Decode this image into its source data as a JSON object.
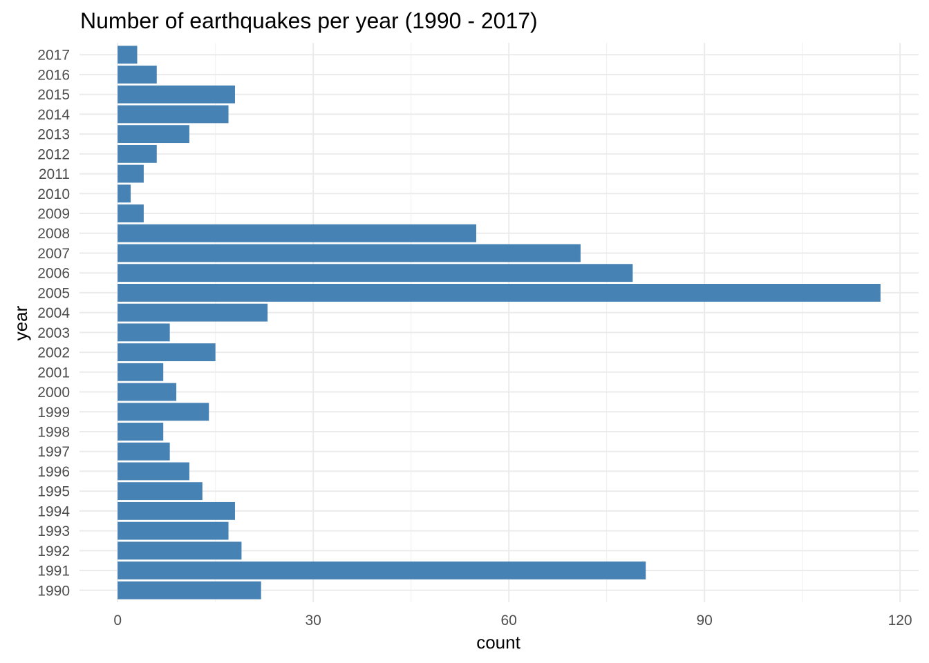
{
  "chart_data": {
    "type": "bar",
    "orientation": "horizontal",
    "title": "Number of earthquakes per year (1990 - 2017)",
    "xlabel": "count",
    "ylabel": "year",
    "categories": [
      "1990",
      "1991",
      "1992",
      "1993",
      "1994",
      "1995",
      "1996",
      "1997",
      "1998",
      "1999",
      "2000",
      "2001",
      "2002",
      "2003",
      "2004",
      "2005",
      "2006",
      "2007",
      "2008",
      "2009",
      "2010",
      "2011",
      "2012",
      "2013",
      "2014",
      "2015",
      "2016",
      "2017"
    ],
    "values": [
      22,
      81,
      19,
      17,
      18,
      13,
      11,
      8,
      7,
      14,
      9,
      7,
      15,
      8,
      23,
      117,
      79,
      71,
      55,
      4,
      2,
      4,
      6,
      11,
      17,
      18,
      6,
      3
    ],
    "xlim": [
      -5.85,
      122.85
    ],
    "xticks": [
      0,
      30,
      60,
      90,
      120
    ],
    "xtick_labels": [
      "0",
      "30",
      "60",
      "90",
      "120"
    ],
    "grid": true,
    "bar_color": "#4682B4"
  }
}
